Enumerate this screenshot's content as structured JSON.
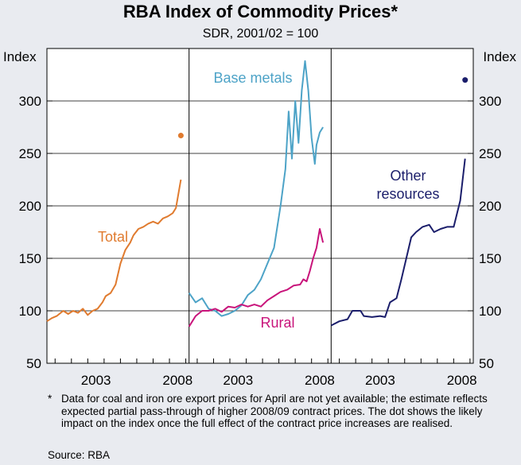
{
  "chart_data": {
    "type": "line",
    "title": "RBA Index of Commodity Prices*",
    "subtitle": "SDR, 2001/02 = 100",
    "ylabel_left": "Index",
    "ylabel_right": "Index",
    "ylim": [
      50,
      350
    ],
    "yticks": [
      50,
      100,
      150,
      200,
      250,
      300
    ],
    "ytick_labels": [
      "50",
      "100",
      "150",
      "200",
      "250",
      "300"
    ],
    "xlim": [
      2000,
      2008.7
    ],
    "xtick_labels": [
      "2003",
      "2008"
    ],
    "panels": [
      {
        "series": [
          {
            "name": "Total",
            "label": "Total",
            "color": "#e07b2f",
            "x": [
              2000.0,
              2000.3,
              2000.6,
              2001.0,
              2001.3,
              2001.6,
              2001.9,
              2002.2,
              2002.5,
              2002.8,
              2003.1,
              2003.4,
              2003.6,
              2003.9,
              2004.2,
              2004.5,
              2004.8,
              2005.1,
              2005.3,
              2005.6,
              2005.9,
              2006.2,
              2006.5,
              2006.8,
              2007.1,
              2007.4,
              2007.7,
              2007.9,
              2008.2
            ],
            "values": [
              90,
              93,
              95,
              100,
              97,
              100,
              98,
              102,
              96,
              100,
              102,
              108,
              114,
              117,
              125,
              145,
              158,
              165,
              172,
              178,
              180,
              183,
              185,
              183,
              188,
              190,
              193,
              198,
              225
            ]
          }
        ],
        "markers": [
          {
            "x": 2008.2,
            "value": 267,
            "color": "#e07b2f"
          }
        ]
      },
      {
        "series": [
          {
            "name": "Base metals",
            "label": "Base metals",
            "color": "#4da3c7",
            "x": [
              2000.0,
              2000.4,
              2000.8,
              2001.2,
              2001.6,
              2002.0,
              2002.4,
              2002.8,
              2003.2,
              2003.6,
              2004.0,
              2004.4,
              2004.8,
              2005.2,
              2005.6,
              2005.9,
              2006.1,
              2006.3,
              2006.5,
              2006.7,
              2006.9,
              2007.1,
              2007.3,
              2007.5,
              2007.7,
              2007.8,
              2008.0,
              2008.2
            ],
            "values": [
              117,
              108,
              112,
              102,
              100,
              95,
              97,
              100,
              105,
              115,
              120,
              130,
              145,
              160,
              200,
              235,
              290,
              245,
              300,
              260,
              310,
              338,
              310,
              265,
              240,
              258,
              270,
              275
            ]
          },
          {
            "name": "Rural",
            "label": "Rural",
            "color": "#c8137a",
            "x": [
              2000.0,
              2000.4,
              2000.8,
              2001.2,
              2001.6,
              2002.0,
              2002.4,
              2002.8,
              2003.2,
              2003.6,
              2004.0,
              2004.4,
              2004.8,
              2005.2,
              2005.6,
              2006.0,
              2006.4,
              2006.8,
              2007.0,
              2007.2,
              2007.4,
              2007.6,
              2007.8,
              2008.0,
              2008.2
            ],
            "values": [
              85,
              95,
              100,
              100,
              102,
              99,
              104,
              103,
              106,
              104,
              106,
              104,
              110,
              114,
              118,
              120,
              124,
              125,
              130,
              128,
              138,
              150,
              160,
              178,
              165
            ]
          }
        ]
      },
      {
        "series": [
          {
            "name": "Other resources",
            "label_line1": "Other",
            "label_line2": "resources",
            "color": "#1b1e6b",
            "x": [
              2000.0,
              2000.5,
              2001.0,
              2001.3,
              2001.8,
              2002.0,
              2002.5,
              2003.0,
              2003.3,
              2003.6,
              2004.0,
              2004.3,
              2004.6,
              2004.9,
              2005.2,
              2005.6,
              2006.0,
              2006.3,
              2006.7,
              2007.1,
              2007.5,
              2007.9,
              2008.2
            ],
            "values": [
              86,
              90,
              92,
              100,
              100,
              95,
              94,
              95,
              94,
              108,
              112,
              130,
              150,
              170,
              175,
              180,
              182,
              175,
              178,
              180,
              180,
              205,
              245
            ]
          }
        ],
        "markers": [
          {
            "x": 2008.2,
            "value": 320,
            "color": "#1b1e6b"
          }
        ]
      }
    ]
  },
  "footnote": {
    "star": "*",
    "text": "Data for coal and iron ore export prices for April are not yet available; the estimate reflects expected partial pass-through of higher 2008/09 contract prices. The dot shows the likely impact on the index once the full effect of the contract price increases are realised."
  },
  "source": "Source: RBA"
}
